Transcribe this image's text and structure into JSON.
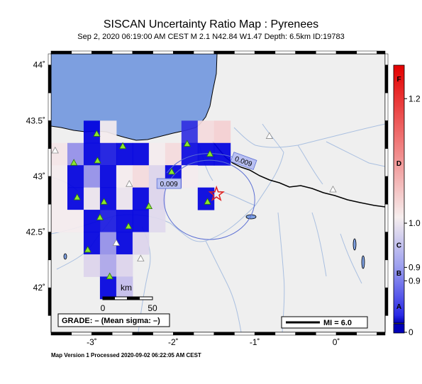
{
  "header": {
    "title": "SISCAN Uncertainty Ratio Map : Pyrenees",
    "subtitle": "Sep  2, 2020 06:19:00 AM CEST   M 2.1   N42.84 W1.47   Depth: 6.5km   ID:19783"
  },
  "map": {
    "lon_range": [
      -3.5,
      0.6
    ],
    "lat_range": [
      41.6,
      44.1
    ],
    "lat_ticks": [
      {
        "value": 44,
        "label": "44˚"
      },
      {
        "value": 43.5,
        "label": "43.5˚"
      },
      {
        "value": 43,
        "label": "43˚"
      },
      {
        "value": 42.5,
        "label": "42.5˚"
      },
      {
        "value": 42,
        "label": "42˚"
      }
    ],
    "lon_ticks": [
      {
        "value": -3,
        "label": "-3˚"
      },
      {
        "value": -2,
        "label": "-2˚"
      },
      {
        "value": -1,
        "label": "-1˚"
      },
      {
        "value": 0,
        "label": "0˚"
      }
    ],
    "epicenter": {
      "lat": 42.84,
      "lon": -1.47
    },
    "contour_labels": [
      "0.009",
      "0.009"
    ],
    "scale_bar": {
      "unit": "km",
      "tick_labels": [
        "0",
        "50"
      ]
    },
    "grade_box": "GRADE: – (Mean sigma: –)",
    "mi_legend": "MI = 6.0",
    "colors": {
      "sea": "#7d9fe0",
      "land": "#efefef",
      "rivers": "#a9bfe0",
      "border": "#000000",
      "station_used": "#8ce62e",
      "station_unused": "#c8c8c8",
      "epicenter": "#e0201e"
    },
    "stations_used": [
      {
        "lat": 43.38,
        "lon": -2.94
      },
      {
        "lat": 43.12,
        "lon": -3.22
      },
      {
        "lat": 43.14,
        "lon": -2.93
      },
      {
        "lat": 43.27,
        "lon": -2.62
      },
      {
        "lat": 43.04,
        "lon": -2.02
      },
      {
        "lat": 43.29,
        "lon": -1.83
      },
      {
        "lat": 43.2,
        "lon": -1.55
      },
      {
        "lat": 42.77,
        "lon": -1.58
      },
      {
        "lat": 42.81,
        "lon": -3.18
      },
      {
        "lat": 42.77,
        "lon": -2.85
      },
      {
        "lat": 42.73,
        "lon": -2.3
      },
      {
        "lat": 42.63,
        "lon": -2.9
      },
      {
        "lat": 42.55,
        "lon": -2.55
      },
      {
        "lat": 42.34,
        "lon": -3.05
      },
      {
        "lat": 42.1,
        "lon": -2.78
      }
    ],
    "stations_unused": [
      {
        "lat": 43.23,
        "lon": -3.45
      },
      {
        "lat": 42.93,
        "lon": -2.54
      },
      {
        "lat": 43.36,
        "lon": -0.82
      },
      {
        "lat": 42.88,
        "lon": -0.04
      },
      {
        "lat": 42.26,
        "lon": -2.4
      },
      {
        "lat": 42.4,
        "lon": -2.7
      }
    ],
    "grid_cells": [
      {
        "lat": 43.4,
        "lon": -3.0,
        "v": 0.0
      },
      {
        "lat": 43.4,
        "lon": -2.8,
        "v": 0.5
      },
      {
        "lat": 43.4,
        "lon": -1.8,
        "v": 0.1
      },
      {
        "lat": 43.4,
        "lon": -1.6,
        "v": 0.55
      },
      {
        "lat": 43.4,
        "lon": -1.4,
        "v": 0.58
      },
      {
        "lat": 43.2,
        "lon": -3.4,
        "v": 0.52
      },
      {
        "lat": 43.2,
        "lon": -3.2,
        "v": 0.3
      },
      {
        "lat": 43.2,
        "lon": -3.0,
        "v": 0.0
      },
      {
        "lat": 43.2,
        "lon": -2.8,
        "v": 0.05
      },
      {
        "lat": 43.2,
        "lon": -2.6,
        "v": 0.0
      },
      {
        "lat": 43.2,
        "lon": -2.4,
        "v": 0.0
      },
      {
        "lat": 43.2,
        "lon": -2.2,
        "v": 0.5
      },
      {
        "lat": 43.2,
        "lon": -2.0,
        "v": 0.55
      },
      {
        "lat": 43.2,
        "lon": -1.8,
        "v": 0.02
      },
      {
        "lat": 43.2,
        "lon": -1.6,
        "v": 0.0
      },
      {
        "lat": 43.2,
        "lon": -1.4,
        "v": 0.0
      },
      {
        "lat": 43.0,
        "lon": -3.4,
        "v": 0.5
      },
      {
        "lat": 43.0,
        "lon": -3.2,
        "v": 0.0
      },
      {
        "lat": 43.0,
        "lon": -3.0,
        "v": 0.3
      },
      {
        "lat": 43.0,
        "lon": -2.8,
        "v": 0.0
      },
      {
        "lat": 43.0,
        "lon": -2.6,
        "v": 0.5
      },
      {
        "lat": 43.0,
        "lon": -2.4,
        "v": 0.55
      },
      {
        "lat": 43.0,
        "lon": -2.2,
        "v": 0.45
      },
      {
        "lat": 43.0,
        "lon": -2.0,
        "v": 0.0
      },
      {
        "lat": 43.0,
        "lon": -1.8,
        "v": 0.5
      },
      {
        "lat": 42.8,
        "lon": -3.4,
        "v": 0.5
      },
      {
        "lat": 42.8,
        "lon": -3.2,
        "v": 0.0
      },
      {
        "lat": 42.8,
        "lon": -3.0,
        "v": 0.48
      },
      {
        "lat": 42.8,
        "lon": -2.8,
        "v": 0.0
      },
      {
        "lat": 42.8,
        "lon": -2.6,
        "v": 0.48
      },
      {
        "lat": 42.8,
        "lon": -2.4,
        "v": 0.0
      },
      {
        "lat": 42.8,
        "lon": -2.2,
        "v": 0.45
      },
      {
        "lat": 42.8,
        "lon": -1.6,
        "v": 0.0
      },
      {
        "lat": 42.6,
        "lon": -3.4,
        "v": 0.5
      },
      {
        "lat": 42.6,
        "lon": -3.2,
        "v": 0.5
      },
      {
        "lat": 42.6,
        "lon": -3.0,
        "v": 0.0
      },
      {
        "lat": 42.6,
        "lon": -2.8,
        "v": 0.05
      },
      {
        "lat": 42.6,
        "lon": -2.6,
        "v": 0.0
      },
      {
        "lat": 42.6,
        "lon": -2.4,
        "v": 0.0
      },
      {
        "lat": 42.6,
        "lon": -2.2,
        "v": 0.46
      },
      {
        "lat": 42.4,
        "lon": -3.0,
        "v": 0.0
      },
      {
        "lat": 42.4,
        "lon": -2.8,
        "v": 0.3
      },
      {
        "lat": 42.4,
        "lon": -2.6,
        "v": 0.0
      },
      {
        "lat": 42.4,
        "lon": -2.4,
        "v": 0.45
      },
      {
        "lat": 42.2,
        "lon": -3.0,
        "v": 0.45
      },
      {
        "lat": 42.2,
        "lon": -2.8,
        "v": 0.35
      },
      {
        "lat": 42.2,
        "lon": -2.6,
        "v": 0.45
      },
      {
        "lat": 42.0,
        "lon": -2.8,
        "v": 0.0
      },
      {
        "lat": 42.0,
        "lon": -2.6,
        "v": 0.4
      }
    ]
  },
  "colorbar": {
    "ticks": [
      {
        "label": "0",
        "frac": 0.0
      },
      {
        "label": "0.9",
        "frac": 0.195
      },
      {
        "label": "0.9",
        "frac": 0.245
      },
      {
        "label": "1.0",
        "frac": 0.41
      },
      {
        "label": "1.2",
        "frac": 0.875
      }
    ],
    "grades": [
      {
        "label": "A",
        "frac": 0.1
      },
      {
        "label": "B",
        "frac": 0.225
      },
      {
        "label": "C",
        "frac": 0.33
      },
      {
        "label": "D",
        "frac": 0.635
      },
      {
        "label": "F",
        "frac": 0.95
      }
    ]
  },
  "footer": "Map Version 1 Processed 2020-09-02 06:22:05 AM CEST"
}
